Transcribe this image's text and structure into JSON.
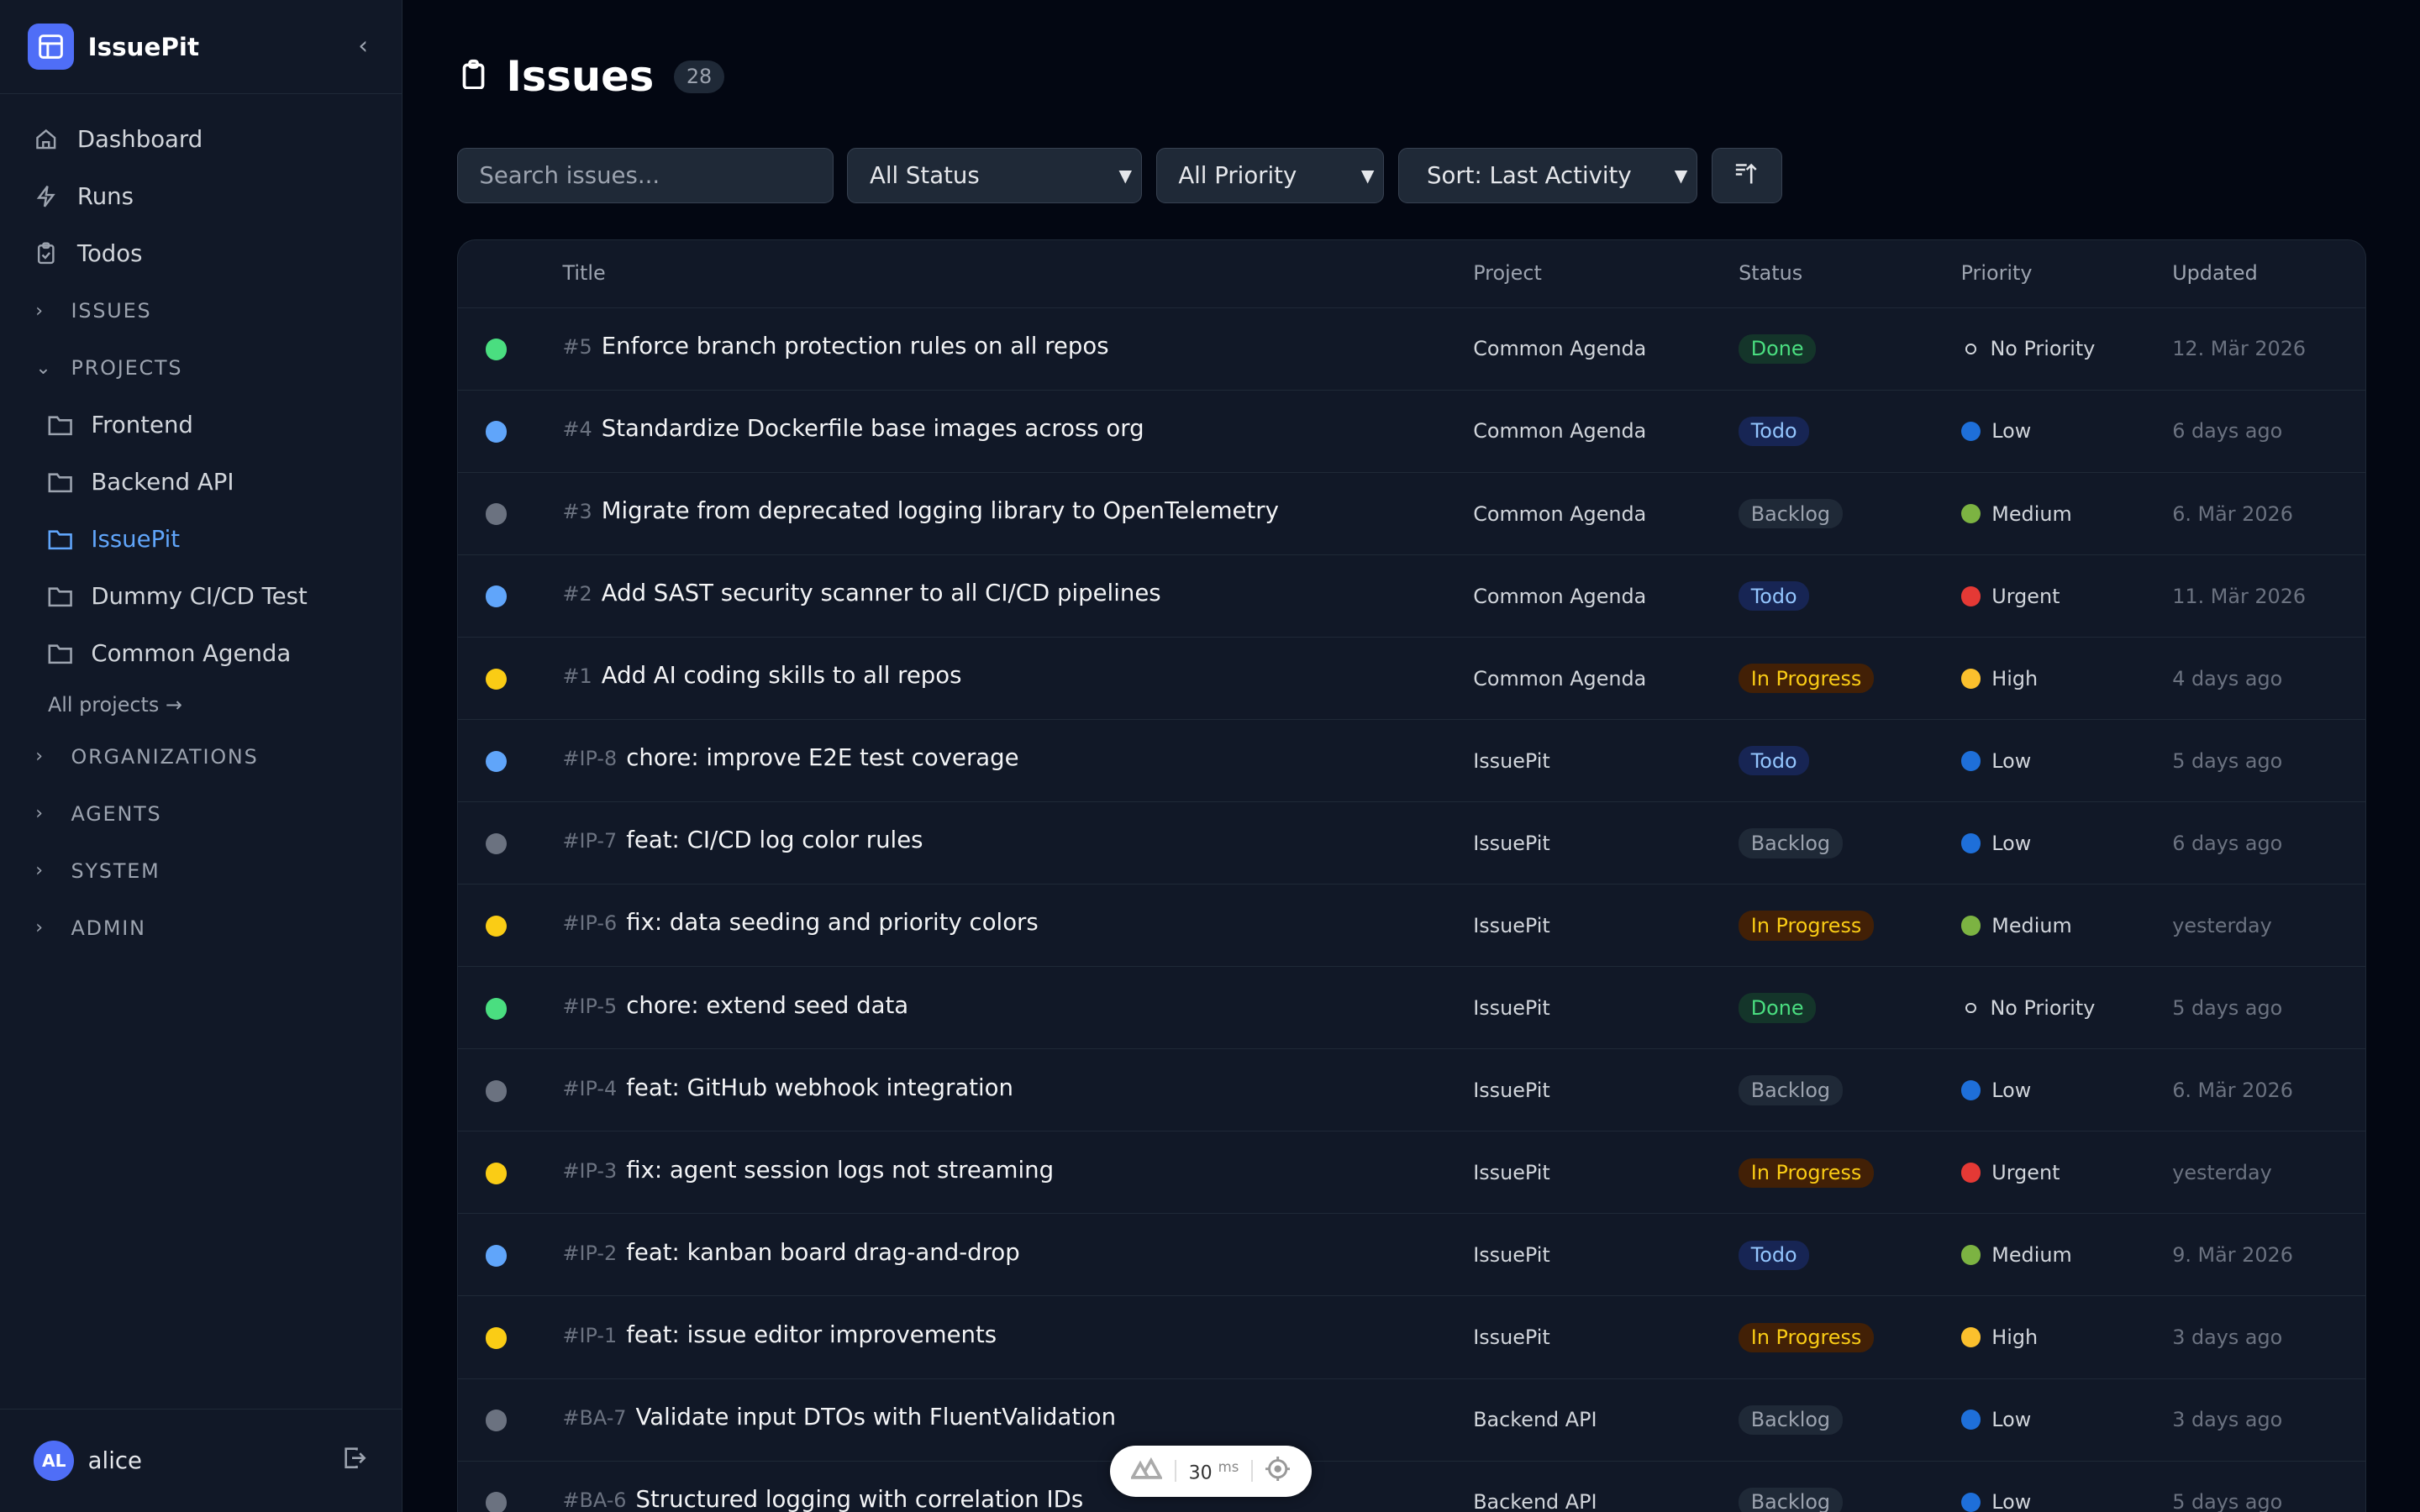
{
  "app": {
    "name": "IssuePit"
  },
  "sidebar": {
    "nav": [
      {
        "label": "Dashboard",
        "icon": "home-icon"
      },
      {
        "label": "Runs",
        "icon": "bolt-icon"
      },
      {
        "label": "Todos",
        "icon": "clipboard-check-icon"
      }
    ],
    "issues_section": "ISSUES",
    "projects_section": "PROJECTS",
    "projects": [
      "Frontend",
      "Backend API",
      "IssuePit",
      "Dummy CI/CD Test",
      "Common Agenda"
    ],
    "active_project": "IssuePit",
    "all_projects": "All projects →",
    "sections": [
      "ORGANIZATIONS",
      "AGENTS",
      "SYSTEM",
      "ADMIN"
    ],
    "user": {
      "initials": "AL",
      "name": "alice"
    }
  },
  "header": {
    "title": "Issues",
    "count": "28"
  },
  "filters": {
    "search_placeholder": "Search issues...",
    "status": "All Status",
    "priority": "All Priority",
    "sort": "Sort: Last Activity"
  },
  "table": {
    "columns": [
      "Title",
      "Project",
      "Status",
      "Priority",
      "Updated"
    ],
    "rows": [
      {
        "num": "#5",
        "title": "Enforce branch protection rules on all repos",
        "project": "Common Agenda",
        "status": "Done",
        "priority": "No Priority",
        "updated": "12. Mär 2026"
      },
      {
        "num": "#4",
        "title": "Standardize Dockerfile base images across org",
        "project": "Common Agenda",
        "status": "Todo",
        "priority": "Low",
        "updated": "6 days ago"
      },
      {
        "num": "#3",
        "title": "Migrate from deprecated logging library to OpenTelemetry",
        "project": "Common Agenda",
        "status": "Backlog",
        "priority": "Medium",
        "updated": "6. Mär 2026"
      },
      {
        "num": "#2",
        "title": "Add SAST security scanner to all CI/CD pipelines",
        "project": "Common Agenda",
        "status": "Todo",
        "priority": "Urgent",
        "updated": "11. Mär 2026"
      },
      {
        "num": "#1",
        "title": "Add AI coding skills to all repos",
        "project": "Common Agenda",
        "status": "In Progress",
        "priority": "High",
        "updated": "4 days ago"
      },
      {
        "num": "#IP-8",
        "title": "chore: improve E2E test coverage",
        "project": "IssuePit",
        "status": "Todo",
        "priority": "Low",
        "updated": "5 days ago"
      },
      {
        "num": "#IP-7",
        "title": "feat: CI/CD log color rules",
        "project": "IssuePit",
        "status": "Backlog",
        "priority": "Low",
        "updated": "6 days ago"
      },
      {
        "num": "#IP-6",
        "title": "fix: data seeding and priority colors",
        "project": "IssuePit",
        "status": "In Progress",
        "priority": "Medium",
        "updated": "yesterday"
      },
      {
        "num": "#IP-5",
        "title": "chore: extend seed data",
        "project": "IssuePit",
        "status": "Done",
        "priority": "No Priority",
        "updated": "5 days ago"
      },
      {
        "num": "#IP-4",
        "title": "feat: GitHub webhook integration",
        "project": "IssuePit",
        "status": "Backlog",
        "priority": "Low",
        "updated": "6. Mär 2026"
      },
      {
        "num": "#IP-3",
        "title": "fix: agent session logs not streaming",
        "project": "IssuePit",
        "status": "In Progress",
        "priority": "Urgent",
        "updated": "yesterday"
      },
      {
        "num": "#IP-2",
        "title": "feat: kanban board drag-and-drop",
        "project": "IssuePit",
        "status": "Todo",
        "priority": "Medium",
        "updated": "9. Mär 2026"
      },
      {
        "num": "#IP-1",
        "title": "feat: issue editor improvements",
        "project": "IssuePit",
        "status": "In Progress",
        "priority": "High",
        "updated": "3 days ago"
      },
      {
        "num": "#BA-7",
        "title": "Validate input DTOs with FluentValidation",
        "project": "Backend API",
        "status": "Backlog",
        "priority": "Low",
        "updated": "3 days ago"
      },
      {
        "num": "#BA-6",
        "title": "Structured logging with correlation IDs",
        "project": "Backend API",
        "status": "Backlog",
        "priority": "Low",
        "updated": "5 days ago"
      }
    ]
  },
  "colors": {
    "status": {
      "Done": {
        "dot": "#4ade80",
        "bg": "#14352a",
        "fg": "#4ade80"
      },
      "Todo": {
        "dot": "#60a5fa",
        "bg": "#172554",
        "fg": "#93c5fd"
      },
      "Backlog": {
        "dot": "#6b7280",
        "bg": "#1f2937",
        "fg": "#9ca3af"
      },
      "In Progress": {
        "dot": "#facc15",
        "bg": "#422006",
        "fg": "#facc15"
      }
    },
    "priority": {
      "Low": "#1e6fd9",
      "Medium": "#7cb342",
      "Urgent": "#e53935",
      "High": "#fbc02d"
    },
    "accent": "#4f6ef7"
  },
  "devbar": {
    "value": "30",
    "unit": "ms"
  }
}
